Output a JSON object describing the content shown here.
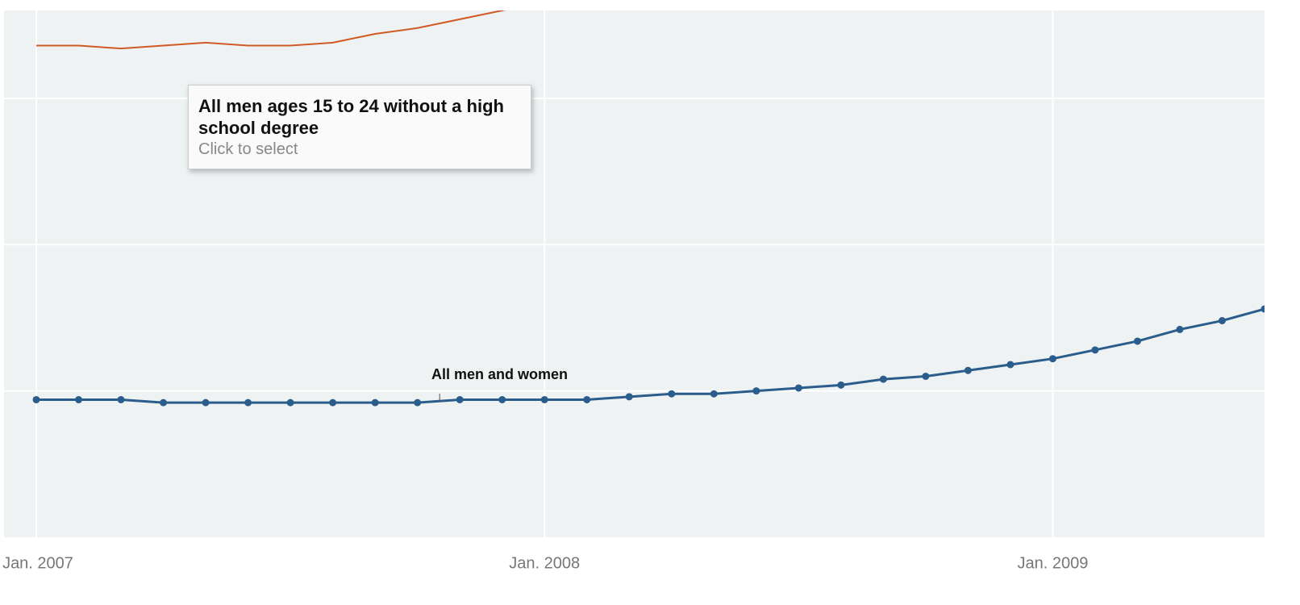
{
  "chart_data": {
    "type": "line",
    "x": [
      "2007-01",
      "2007-02",
      "2007-03",
      "2007-04",
      "2007-05",
      "2007-06",
      "2007-07",
      "2007-08",
      "2007-09",
      "2007-10",
      "2007-11",
      "2007-12",
      "2008-01",
      "2008-02",
      "2008-03",
      "2008-04",
      "2008-05",
      "2008-06",
      "2008-07",
      "2008-08",
      "2008-09",
      "2008-10",
      "2008-11",
      "2008-12",
      "2009-01",
      "2009-02",
      "2009-03",
      "2009-04",
      "2009-05",
      "2009-06"
    ],
    "series": [
      {
        "name": "All men ages 15 to 24 without a high school degree",
        "color": "#d05a24",
        "values": [
          16.8,
          16.8,
          16.7,
          16.8,
          16.9,
          16.8,
          16.8,
          16.9,
          17.2,
          17.4,
          17.7,
          18.0,
          18.3,
          null,
          null,
          null,
          null,
          null,
          null,
          null,
          null,
          null,
          null,
          null,
          null,
          null,
          null,
          null,
          null,
          null
        ]
      },
      {
        "name": "All men and women",
        "color": "#2b5d8c",
        "values": [
          4.7,
          4.7,
          4.7,
          4.6,
          4.6,
          4.6,
          4.6,
          4.6,
          4.6,
          4.6,
          4.7,
          4.7,
          4.7,
          4.7,
          4.8,
          4.9,
          4.9,
          5.0,
          5.1,
          5.2,
          5.4,
          5.5,
          5.7,
          5.9,
          6.1,
          6.4,
          6.7,
          7.1,
          7.4,
          7.8
        ]
      }
    ],
    "xlim": [
      "2007-01",
      "2009-06"
    ],
    "xticks": [
      {
        "value": "2007-01",
        "label": "Jan. 2007"
      },
      {
        "value": "2008-01",
        "label": "Jan. 2008"
      },
      {
        "value": "2009-01",
        "label": "Jan. 2009"
      }
    ],
    "ylim": [
      0,
      18
    ],
    "yticks": [
      5,
      10,
      15
    ],
    "grid": true,
    "tooltip": {
      "hint": "Click to select"
    }
  }
}
